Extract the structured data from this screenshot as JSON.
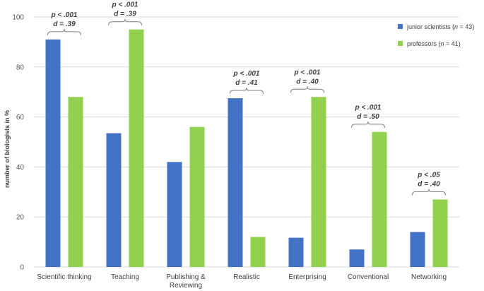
{
  "chart_data": {
    "type": "bar",
    "ylabel": "number of biologists in %",
    "ylim": [
      0,
      100
    ],
    "yticks": [
      "0",
      "20",
      "40",
      "60",
      "80",
      "100"
    ],
    "categories": [
      [
        "Scientific thinking"
      ],
      [
        "Teaching"
      ],
      [
        "Publishing &",
        "Reviewing"
      ],
      [
        "Realistic"
      ],
      [
        "Enterprising"
      ],
      [
        "Conventional"
      ],
      [
        "Networking"
      ]
    ],
    "series": [
      {
        "name": "junior scientists (n = 43)",
        "legend_prefix": "junior scientists (",
        "legend_n": "n",
        "legend_suffix": " = 43)",
        "color": "#4472C4",
        "values": [
          91,
          53.5,
          42,
          67.5,
          11.7,
          7,
          14
        ]
      },
      {
        "name": "professors (n = 41)",
        "legend_prefix": "professors (",
        "legend_n": "n",
        "legend_suffix": " = 41)",
        "color": "#92D050",
        "values": [
          68,
          95,
          56,
          12,
          68,
          54,
          27
        ]
      }
    ],
    "annotations": [
      {
        "category": 0,
        "p": "p < .001",
        "d": "d = .39"
      },
      {
        "category": 1,
        "p": "p < .001",
        "d": "d = .39"
      },
      {
        "category": 3,
        "p": "p < .001",
        "d": "d = .41"
      },
      {
        "category": 4,
        "p": "p < .001",
        "d": "d = .40"
      },
      {
        "category": 5,
        "p": "p < .001",
        "d": "d = .50"
      },
      {
        "category": 6,
        "p": "p < .05",
        "d": "d = .40"
      }
    ]
  }
}
